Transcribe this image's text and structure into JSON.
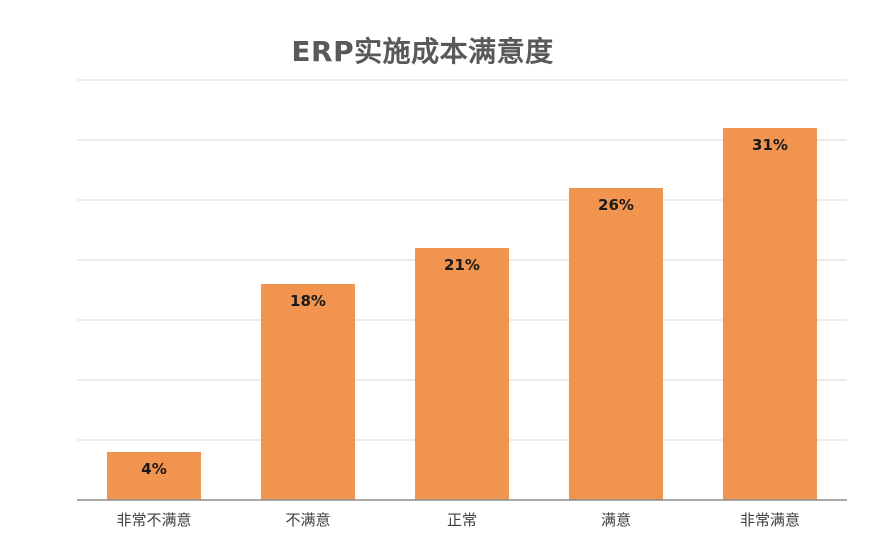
{
  "chart_data": {
    "type": "bar",
    "title": "ERP实施成本满意度",
    "categories": [
      "非常不满意",
      "不满意",
      "正常",
      "满意",
      "非常满意"
    ],
    "values": [
      4,
      18,
      21,
      26,
      31
    ],
    "value_labels": [
      "4%",
      "18%",
      "21%",
      "26%",
      "31%"
    ],
    "unit": "%",
    "ylim": [
      0,
      35
    ],
    "grid": true,
    "legend": "none",
    "bar_color": "#f0944f"
  }
}
